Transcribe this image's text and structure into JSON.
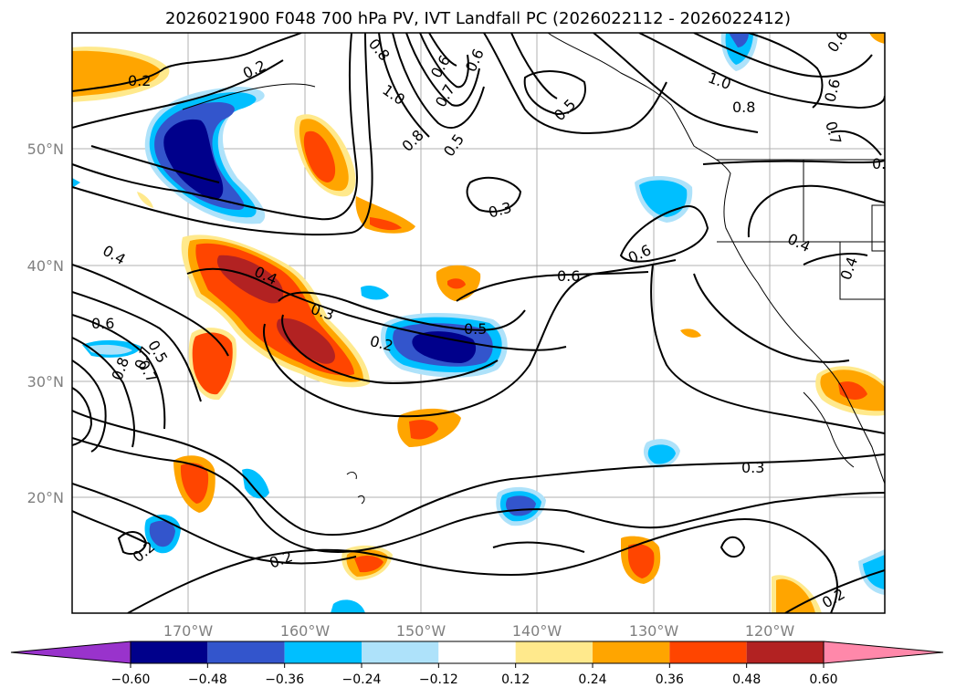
{
  "title": "2026021900 F048 700 hPa PV, IVT Landfall PC (2026022112 - 2026022412)",
  "axes": {
    "lat_labels": [
      "50°N",
      "40°N",
      "30°N",
      "20°N"
    ],
    "lon_labels": [
      "170°W",
      "160°W",
      "150°W",
      "140°W",
      "130°W",
      "120°W"
    ]
  },
  "contour_labels": [
    "0.2",
    "0.3",
    "0.4",
    "0.5",
    "0.6",
    "0.7",
    "0.8",
    "1.0",
    "0.2",
    "0.8",
    "0.5",
    "0.7",
    "0.6",
    "0.3",
    "0.6",
    "0.6",
    "0.4",
    "0.3",
    "0.2",
    "0.5",
    "0.6",
    "0.5",
    "0.7",
    "0.8",
    "0.2",
    "0.2",
    "0.6",
    "1.0",
    "0.8",
    "0.6",
    "0.7",
    "0.4",
    "0.4",
    "0.3",
    "0.2"
  ],
  "colorbar": {
    "ticks": [
      "−0.60",
      "−0.48",
      "−0.36",
      "−0.24",
      "−0.12",
      "0.12",
      "0.24",
      "0.36",
      "0.48",
      "0.60"
    ],
    "colors": [
      "#9933cc",
      "#00008b",
      "#3355cc",
      "#00bfff",
      "#aee2fa",
      "#ffffff",
      "#ffe98c",
      "#ffa500",
      "#ff4500",
      "#b22222",
      "#ff88aa"
    ]
  }
}
